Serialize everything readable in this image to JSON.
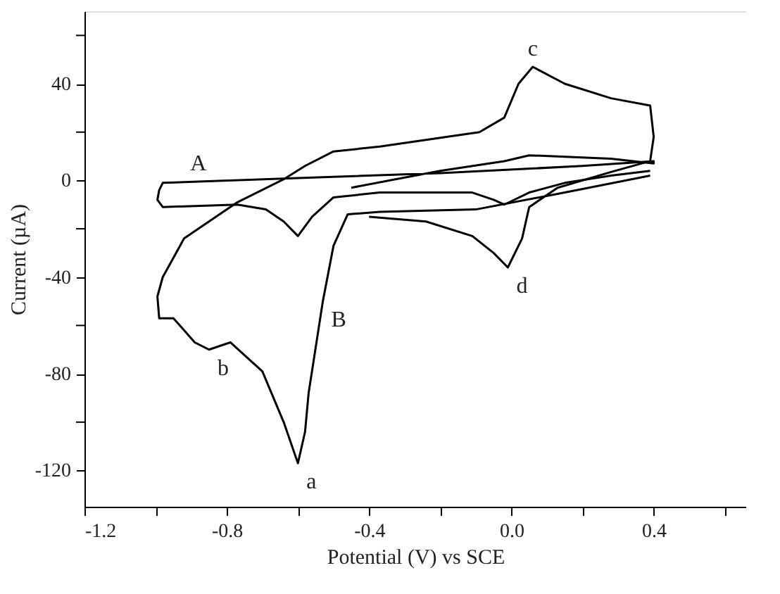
{
  "chart_data": {
    "type": "line",
    "xlabel": "Potential (V) vs SCE",
    "ylabel": "Current (µA)",
    "xlim": [
      -1.2,
      0.66
    ],
    "ylim": [
      -135,
      70
    ],
    "xticks": [
      -1.2,
      {
        "value": -1.0,
        "label": null
      },
      -0.8,
      {
        "value": -0.6,
        "label": null
      },
      -0.4,
      {
        "value": -0.2,
        "label": null
      },
      {
        "value": 0.0,
        "label": "0.0"
      },
      {
        "value": 0.2,
        "label": null
      },
      0.4,
      {
        "value": 0.6,
        "label": null
      }
    ],
    "yticks": [
      -120,
      {
        "value": -100,
        "label": null
      },
      -80,
      {
        "value": -60,
        "label": null
      },
      -40,
      {
        "value": -20,
        "label": null
      },
      0,
      {
        "value": 20,
        "label": null
      },
      40,
      {
        "value": 60,
        "label": null
      }
    ],
    "grid": false,
    "legend": false,
    "marker": "none",
    "line_style": "solid",
    "series": [
      {
        "color": "#000000",
        "x": [
          0.39,
          0.28,
          0.15,
          0.05,
          -0.02,
          -0.05,
          -0.11,
          -0.37,
          -0.5,
          -0.56,
          -0.6,
          -0.64,
          -0.69,
          -0.77,
          -0.98,
          -0.995,
          -0.99,
          -0.98,
          -0.88,
          -0.6,
          -0.2,
          0.2,
          0.4,
          0.4,
          0.28,
          0.05,
          -0.02,
          -0.2,
          -0.45
        ],
        "values": [
          4,
          2,
          -1,
          -5,
          -10,
          -8,
          -5,
          -5,
          -7,
          -15,
          -23,
          -17,
          -12,
          -10,
          -11,
          -8,
          -4,
          -1,
          -0.5,
          1,
          3,
          6,
          8,
          7,
          9,
          10.4,
          8,
          4,
          -3
        ]
      },
      {
        "color": "#000000",
        "x": [
          -0.4,
          -0.24,
          -0.11,
          -0.05,
          -0.01,
          0.03,
          0.05,
          0.13,
          0.28,
          0.39,
          0.4,
          0.39,
          0.28,
          0.15,
          0.06,
          0.02,
          -0.02,
          -0.09,
          -0.37,
          -0.5,
          -0.58,
          -0.64,
          -0.77,
          -0.92,
          -0.98,
          -0.995,
          -0.99,
          -0.95,
          -0.89,
          -0.85,
          -0.79,
          -0.7,
          -0.64,
          -0.6,
          -0.58,
          -0.57,
          -0.53,
          -0.5,
          -0.46,
          -0.37,
          -0.1,
          0.15,
          0.39
        ],
        "values": [
          -15,
          -17,
          -23,
          -30,
          -36,
          -24,
          -11,
          -3,
          3.5,
          8,
          18,
          31,
          34,
          40,
          47,
          40,
          26,
          20,
          14,
          12,
          6,
          0.5,
          -9,
          -24,
          -40,
          -48,
          -57,
          -57,
          -67,
          -70,
          -67,
          -79,
          -100,
          -117,
          -104,
          -88,
          -50,
          -27,
          -14,
          -13,
          -12,
          -5,
          2
        ]
      }
    ],
    "annotations": [
      {
        "text": "a",
        "x": -0.6,
        "y": -117
      },
      {
        "text": "b",
        "x": -0.85,
        "y": -70
      },
      {
        "text": "c",
        "x": 0.06,
        "y": 47
      },
      {
        "text": "d",
        "x": -0.01,
        "y": -36
      },
      {
        "text": "A",
        "x": -0.88,
        "y": -0.5
      },
      {
        "text": "B",
        "x": -0.53,
        "y": -50
      }
    ]
  }
}
